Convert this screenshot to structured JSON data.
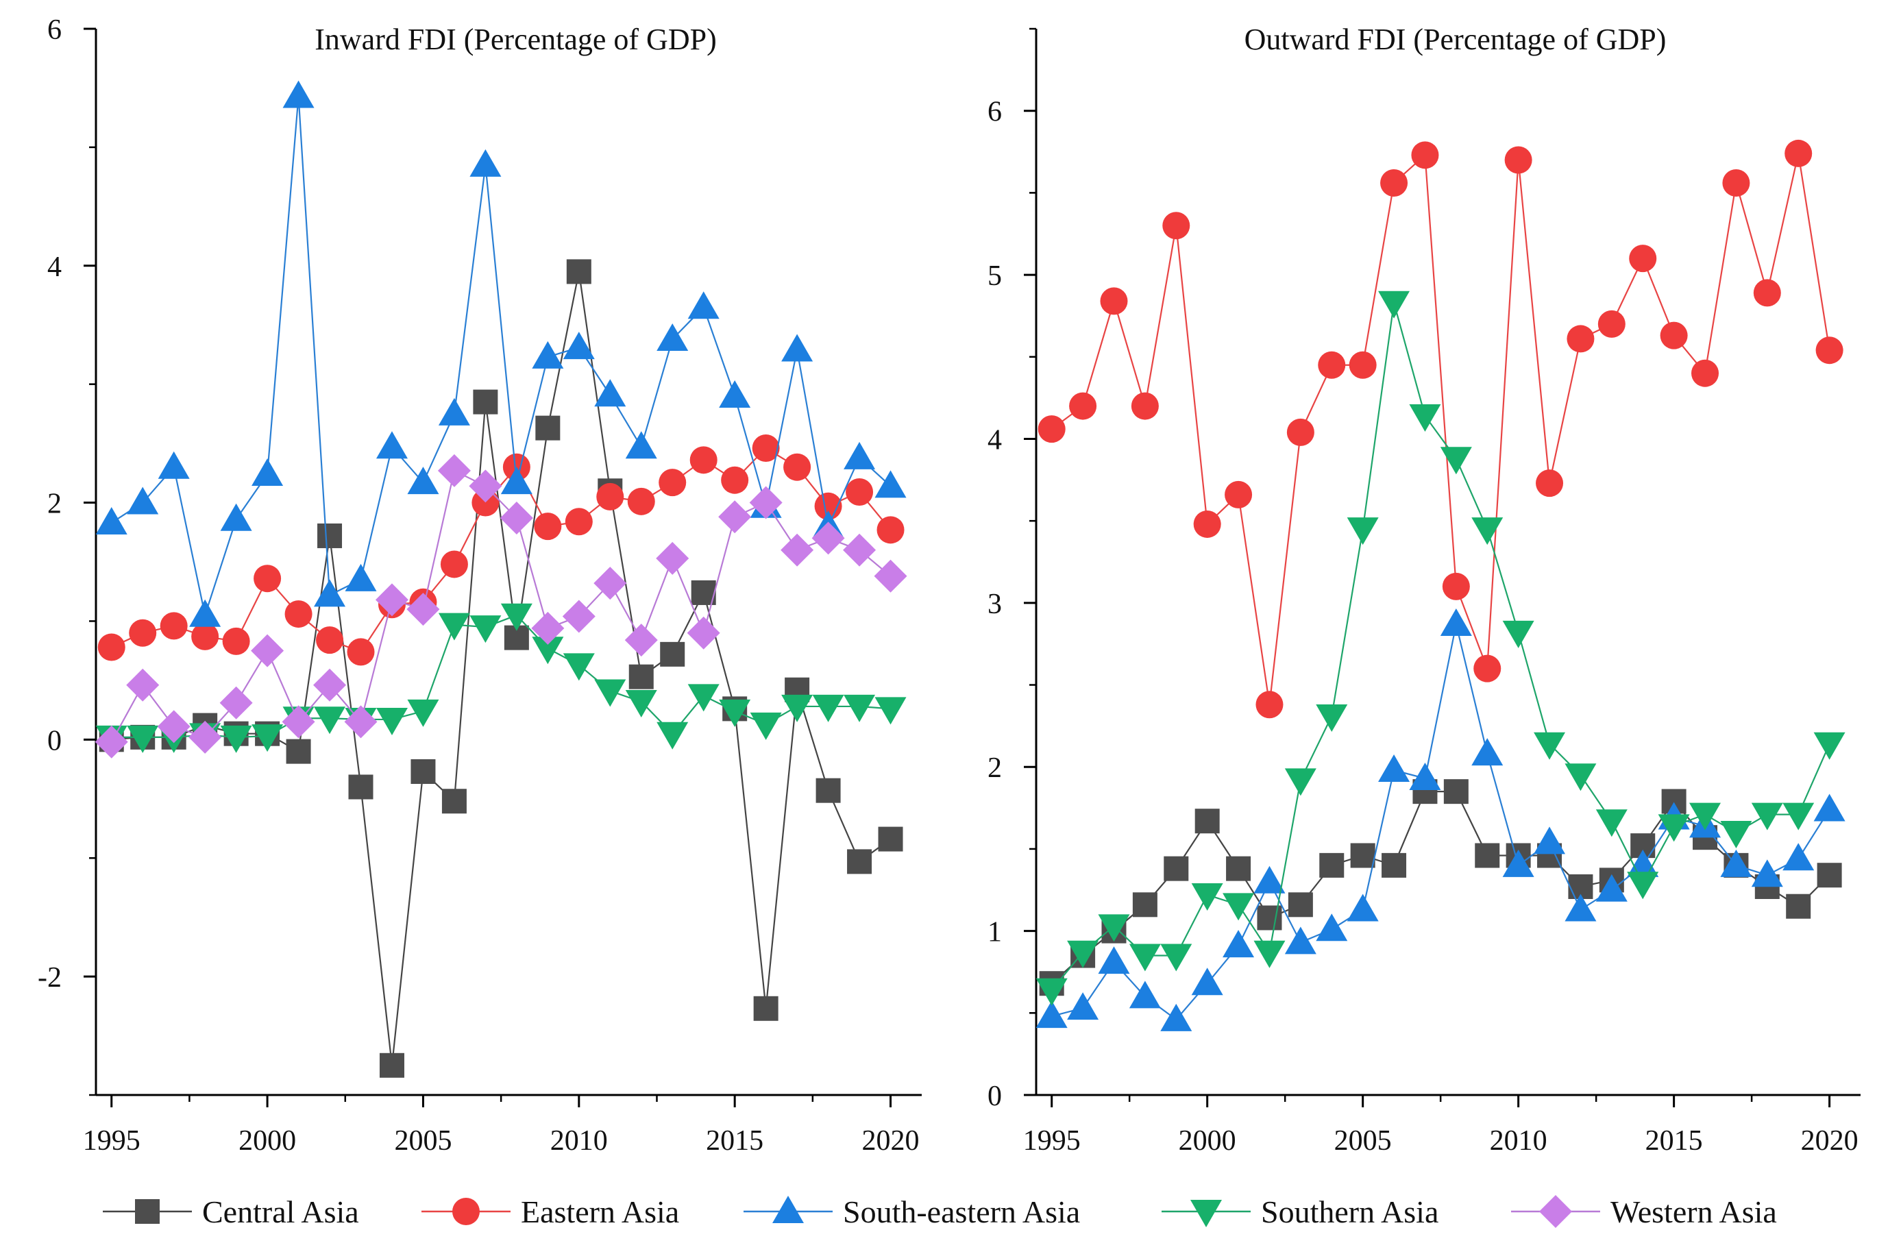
{
  "legend": {
    "position": "bottom",
    "entries": [
      "Central Asia",
      "Eastern Asia",
      "South-eastern Asia",
      "Southern Asia",
      "Western Asia"
    ]
  },
  "series_styles": [
    {
      "name": "Central Asia",
      "color": "#4d4d4d",
      "line": "#444444",
      "marker": "square"
    },
    {
      "name": "Eastern Asia",
      "color": "#ef3b3b",
      "line": "#e84444",
      "marker": "circle"
    },
    {
      "name": "South-eastern Asia",
      "color": "#1c7fe0",
      "line": "#2a7fd4",
      "marker": "triangle-up"
    },
    {
      "name": "Southern Asia",
      "color": "#17b06a",
      "line": "#1ea56a",
      "marker": "triangle-down"
    },
    {
      "name": "Western Asia",
      "color": "#c97ee8",
      "line": "#b87ad6",
      "marker": "diamond"
    }
  ],
  "chart_data": [
    {
      "type": "line",
      "title": "Inward FDI  (Percentage of GDP)",
      "xlabel": "",
      "ylabel": "",
      "xlim": [
        1994.5,
        2021
      ],
      "ylim": [
        -3,
        6
      ],
      "xticks": [
        1995,
        2000,
        2005,
        2010,
        2015,
        2020
      ],
      "yticks": [
        -2,
        0,
        2,
        4,
        6
      ],
      "x": [
        1995,
        1996,
        1997,
        1998,
        1999,
        2000,
        2001,
        2002,
        2003,
        2004,
        2005,
        2006,
        2007,
        2008,
        2009,
        2010,
        2011,
        2012,
        2013,
        2014,
        2015,
        2016,
        2017,
        2018,
        2019,
        2020
      ],
      "series": [
        {
          "name": "Central Asia",
          "values": [
            0.0,
            0.02,
            0.02,
            0.12,
            0.05,
            0.05,
            -0.1,
            1.72,
            -0.4,
            -2.75,
            -0.27,
            -0.52,
            2.85,
            0.86,
            2.63,
            3.95,
            2.1,
            0.53,
            0.72,
            1.24,
            0.26,
            -2.27,
            0.42,
            -0.43,
            -1.03,
            -0.84
          ]
        },
        {
          "name": "Eastern Asia",
          "values": [
            0.78,
            0.9,
            0.96,
            0.87,
            0.83,
            1.36,
            1.06,
            0.84,
            0.74,
            1.14,
            1.16,
            1.48,
            2.0,
            2.3,
            1.8,
            1.84,
            2.05,
            2.01,
            2.17,
            2.36,
            2.19,
            2.46,
            2.3,
            1.97,
            2.09,
            1.77
          ]
        },
        {
          "name": "South-eastern Asia",
          "values": [
            1.83,
            2.0,
            2.3,
            1.05,
            1.86,
            2.24,
            5.43,
            1.22,
            1.35,
            2.47,
            2.17,
            2.75,
            4.85,
            2.17,
            3.23,
            3.31,
            2.91,
            2.47,
            3.38,
            3.65,
            2.9,
            1.97,
            3.29,
            1.8,
            2.38,
            2.14
          ]
        },
        {
          "name": "Southern Asia",
          "values": [
            0.02,
            0.02,
            0.02,
            0.04,
            0.02,
            0.03,
            0.18,
            0.18,
            0.17,
            0.17,
            0.24,
            0.97,
            0.95,
            1.05,
            0.77,
            0.63,
            0.41,
            0.32,
            0.05,
            0.37,
            0.24,
            0.13,
            0.28,
            0.28,
            0.28,
            0.26
          ]
        },
        {
          "name": "Western Asia",
          "values": [
            -0.02,
            0.46,
            0.11,
            0.02,
            0.31,
            0.75,
            0.15,
            0.46,
            0.15,
            1.18,
            1.1,
            2.27,
            2.14,
            1.87,
            0.94,
            1.04,
            1.32,
            0.84,
            1.53,
            0.9,
            1.88,
            2.0,
            1.6,
            1.7,
            1.6,
            1.38
          ]
        }
      ]
    },
    {
      "type": "line",
      "title": "Outward FDI  (Percentage of GDP)",
      "xlabel": "",
      "ylabel": "",
      "xlim": [
        1994.5,
        2021
      ],
      "ylim": [
        0,
        6.5
      ],
      "xticks": [
        1995,
        2000,
        2005,
        2010,
        2015,
        2020
      ],
      "yticks": [
        0,
        1,
        2,
        3,
        4,
        5,
        6
      ],
      "x": [
        1995,
        1996,
        1997,
        1998,
        1999,
        2000,
        2001,
        2002,
        2003,
        2004,
        2005,
        2006,
        2007,
        2008,
        2009,
        2010,
        2011,
        2012,
        2013,
        2014,
        2015,
        2016,
        2017,
        2018,
        2019,
        2020
      ],
      "series": [
        {
          "name": "Central Asia",
          "values": [
            0.68,
            0.85,
            1.0,
            1.16,
            1.38,
            1.67,
            1.38,
            1.08,
            1.16,
            1.4,
            1.46,
            1.4,
            1.85,
            1.85,
            1.46,
            1.46,
            1.46,
            1.27,
            1.31,
            1.52,
            1.79,
            1.57,
            1.4,
            1.27,
            1.15,
            1.34
          ]
        },
        {
          "name": "Eastern Asia",
          "values": [
            4.06,
            4.2,
            4.84,
            4.2,
            5.3,
            3.48,
            3.66,
            2.38,
            4.04,
            4.45,
            4.45,
            5.56,
            5.73,
            3.1,
            2.6,
            5.7,
            3.73,
            4.61,
            4.7,
            5.1,
            4.63,
            4.4,
            5.56,
            4.89,
            5.74,
            4.54
          ]
        },
        {
          "name": "South-eastern Asia",
          "values": [
            0.48,
            0.53,
            0.81,
            0.6,
            0.46,
            0.68,
            0.91,
            1.3,
            0.93,
            1.01,
            1.13,
            1.98,
            1.93,
            2.87,
            2.08,
            1.4,
            1.54,
            1.13,
            1.25,
            1.4,
            1.69,
            1.64,
            1.4,
            1.34,
            1.44,
            1.74
          ]
        },
        {
          "name": "Southern Asia",
          "values": [
            0.64,
            0.87,
            1.03,
            0.85,
            0.85,
            1.22,
            1.16,
            0.87,
            1.92,
            2.31,
            3.45,
            4.83,
            4.14,
            3.88,
            3.45,
            2.82,
            2.14,
            1.95,
            1.67,
            1.29,
            1.64,
            1.71,
            1.6,
            1.71,
            1.71,
            2.14
          ]
        }
      ]
    }
  ]
}
